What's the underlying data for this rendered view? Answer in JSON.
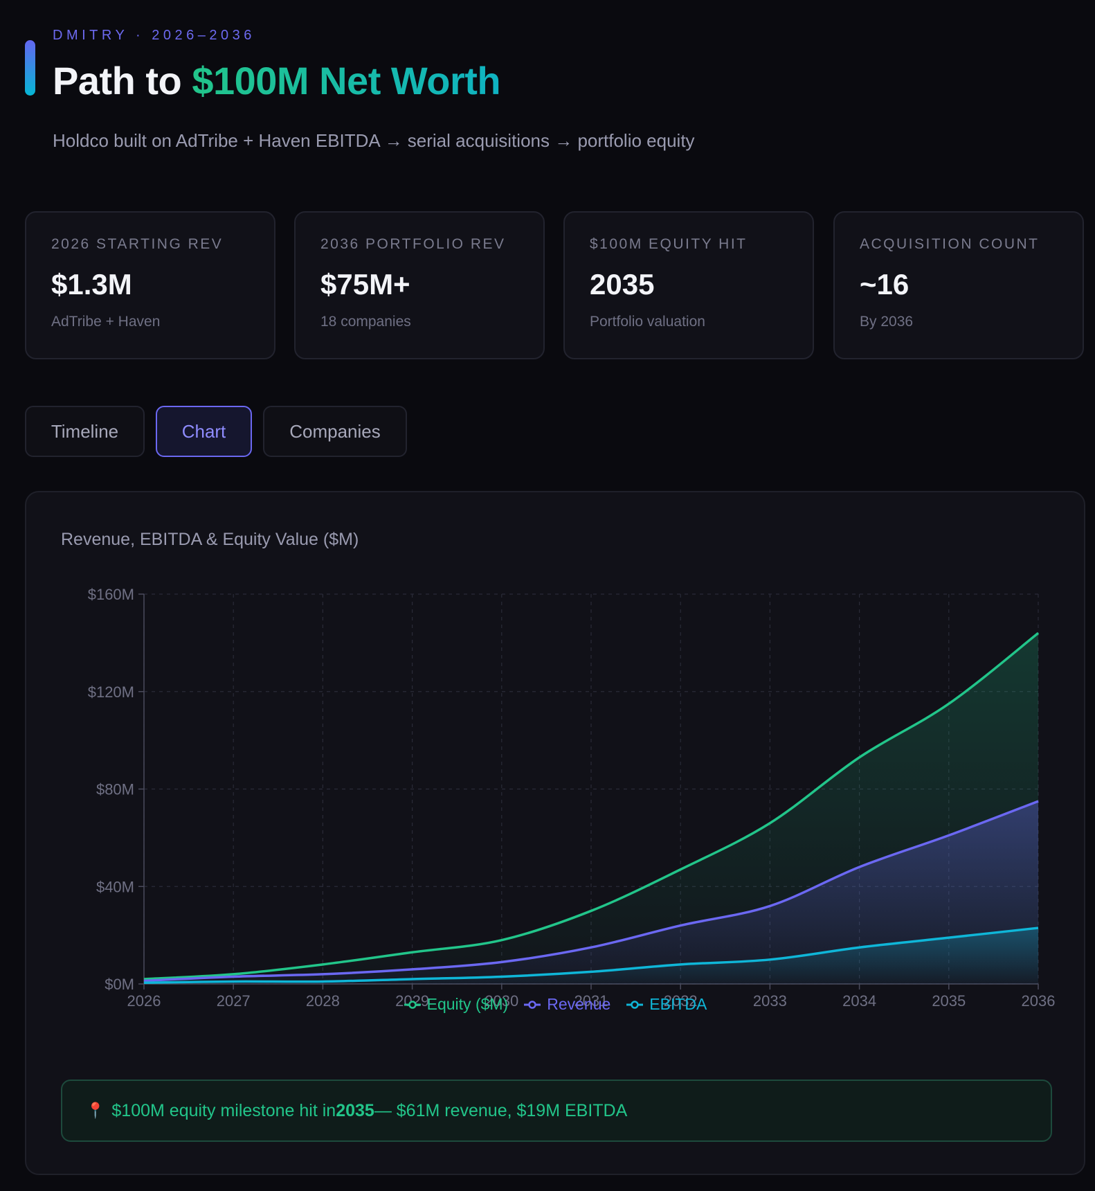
{
  "header": {
    "eyebrow": "DMITRY · 2026–2036",
    "title_prefix": "Path to ",
    "title_highlight": "$100M Net Worth",
    "subtitle": "Holdco built on AdTribe + Haven EBITDA → serial acquisitions → portfolio equity"
  },
  "stats": [
    {
      "label": "2026 STARTING REV",
      "value": "$1.3M",
      "sub": "AdTribe + Haven"
    },
    {
      "label": "2036 PORTFOLIO REV",
      "value": "$75M+",
      "sub": "18 companies"
    },
    {
      "label": "$100M EQUITY HIT",
      "value": "2035",
      "sub": "Portfolio valuation"
    },
    {
      "label": "ACQUISITION COUNT",
      "value": "~16",
      "sub": "By 2036"
    }
  ],
  "tabs": [
    {
      "label": "Timeline",
      "active": false
    },
    {
      "label": "Chart",
      "active": true
    },
    {
      "label": "Companies",
      "active": false
    }
  ],
  "chart_data": {
    "type": "area",
    "title": "Revenue, EBITDA & Equity Value ($M)",
    "x": [
      "2026",
      "2027",
      "2028",
      "2029",
      "2030",
      "2031",
      "2032",
      "2033",
      "2034",
      "2035",
      "2036"
    ],
    "y_ticks": [
      "$0M",
      "$40M",
      "$80M",
      "$120M",
      "$160M"
    ],
    "ylim": [
      0,
      160
    ],
    "grid": true,
    "legend": "bottom",
    "series": [
      {
        "name": "Equity ($M)",
        "color": "#22c58a",
        "values": [
          2,
          4,
          8,
          13,
          18,
          30,
          47,
          66,
          93,
          115,
          144
        ]
      },
      {
        "name": "Revenue",
        "color": "#6b68f2",
        "values": [
          1.3,
          3,
          4,
          6,
          9,
          15,
          24,
          32,
          48,
          61,
          75
        ]
      },
      {
        "name": "EBITDA",
        "color": "#0fb6d8",
        "values": [
          0.5,
          1,
          1,
          2,
          3,
          5,
          8,
          10,
          15,
          19,
          23
        ]
      }
    ]
  },
  "milestone": {
    "prefix": "$100M equity milestone hit in ",
    "year": "2035",
    "suffix": " — $61M revenue, $19M EBITDA"
  }
}
